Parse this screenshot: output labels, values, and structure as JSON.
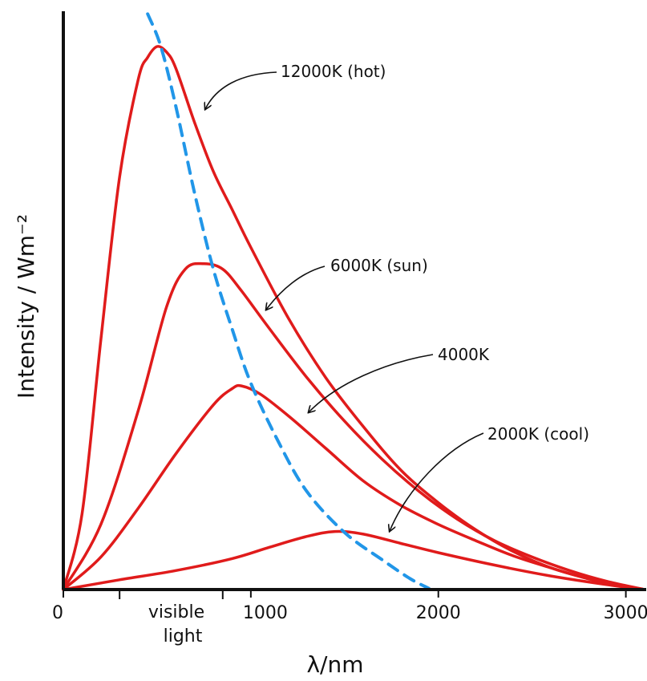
{
  "chart_data": {
    "type": "line",
    "xlabel": "λ/nm",
    "ylabel": "Intensity / Wm⁻²",
    "xlim": [
      0,
      3100
    ],
    "ylim": [
      0,
      10
    ],
    "x_ticks": [
      {
        "value": 0,
        "label": "0"
      },
      {
        "value": 1000,
        "label": "1000"
      },
      {
        "value": 2000,
        "label": "2000"
      },
      {
        "value": 3000,
        "label": "3000"
      }
    ],
    "visible_band": {
      "from": 300,
      "to": 850,
      "label_line1": "visible",
      "label_line2": "light"
    },
    "series": [
      {
        "name": "12000K (hot)",
        "color": "#e01b1b",
        "points": [
          [
            0,
            0
          ],
          [
            100,
            1.4
          ],
          [
            200,
            4.6
          ],
          [
            300,
            7.6
          ],
          [
            400,
            9.4
          ],
          [
            450,
            9.8
          ],
          [
            500,
            10.0
          ],
          [
            550,
            9.9
          ],
          [
            600,
            9.6
          ],
          [
            700,
            8.6
          ],
          [
            800,
            7.7
          ],
          [
            900,
            7.0
          ],
          [
            1000,
            6.3
          ],
          [
            1200,
            5.0
          ],
          [
            1400,
            3.9
          ],
          [
            1600,
            3.0
          ],
          [
            1800,
            2.2
          ],
          [
            2000,
            1.6
          ],
          [
            2200,
            1.1
          ],
          [
            2400,
            0.7
          ],
          [
            2600,
            0.4
          ],
          [
            2800,
            0.2
          ],
          [
            3000,
            0.05
          ],
          [
            3100,
            0
          ]
        ]
      },
      {
        "name": "6000K (sun)",
        "color": "#e01b1b",
        "points": [
          [
            0,
            0
          ],
          [
            200,
            1.2
          ],
          [
            400,
            3.3
          ],
          [
            550,
            5.2
          ],
          [
            650,
            5.9
          ],
          [
            750,
            6.0
          ],
          [
            850,
            5.9
          ],
          [
            950,
            5.5
          ],
          [
            1100,
            4.8
          ],
          [
            1300,
            3.9
          ],
          [
            1500,
            3.1
          ],
          [
            1700,
            2.4
          ],
          [
            1900,
            1.8
          ],
          [
            2100,
            1.3
          ],
          [
            2300,
            0.9
          ],
          [
            2500,
            0.6
          ],
          [
            2700,
            0.35
          ],
          [
            2900,
            0.15
          ],
          [
            3100,
            0
          ]
        ]
      },
      {
        "name": "4000K",
        "color": "#e01b1b",
        "points": [
          [
            0,
            0
          ],
          [
            200,
            0.6
          ],
          [
            400,
            1.5
          ],
          [
            600,
            2.5
          ],
          [
            800,
            3.4
          ],
          [
            900,
            3.7
          ],
          [
            950,
            3.75
          ],
          [
            1050,
            3.6
          ],
          [
            1200,
            3.2
          ],
          [
            1400,
            2.6
          ],
          [
            1600,
            2.0
          ],
          [
            1800,
            1.55
          ],
          [
            2000,
            1.2
          ],
          [
            2200,
            0.9
          ],
          [
            2400,
            0.62
          ],
          [
            2600,
            0.4
          ],
          [
            2800,
            0.2
          ],
          [
            3000,
            0.06
          ],
          [
            3100,
            0
          ]
        ]
      },
      {
        "name": "2000K (cool)",
        "color": "#e01b1b",
        "points": [
          [
            0,
            0
          ],
          [
            300,
            0.18
          ],
          [
            600,
            0.35
          ],
          [
            900,
            0.57
          ],
          [
            1100,
            0.78
          ],
          [
            1300,
            0.98
          ],
          [
            1450,
            1.07
          ],
          [
            1600,
            1.02
          ],
          [
            1800,
            0.85
          ],
          [
            2000,
            0.68
          ],
          [
            2300,
            0.45
          ],
          [
            2600,
            0.25
          ],
          [
            2900,
            0.09
          ],
          [
            3100,
            0
          ]
        ]
      },
      {
        "name": "peak wavelength",
        "color": "#2196e8",
        "dashed": true,
        "points": [
          [
            450,
            10.6
          ],
          [
            520,
            10.0
          ],
          [
            600,
            8.9
          ],
          [
            700,
            7.3
          ],
          [
            800,
            5.9
          ],
          [
            900,
            4.8
          ],
          [
            1000,
            3.8
          ],
          [
            1150,
            2.7
          ],
          [
            1300,
            1.8
          ],
          [
            1500,
            1.05
          ],
          [
            1700,
            0.55
          ],
          [
            1850,
            0.2
          ],
          [
            1950,
            0.02
          ]
        ]
      }
    ],
    "annotations": [
      {
        "text": "12000K (hot)",
        "series": 0
      },
      {
        "text": "6000K (sun)",
        "series": 1
      },
      {
        "text": "4000K",
        "series": 2
      },
      {
        "text": "2000K (cool)",
        "series": 3
      }
    ]
  }
}
